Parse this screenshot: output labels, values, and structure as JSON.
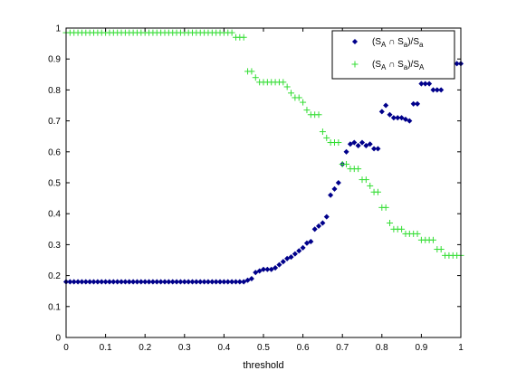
{
  "chart_data": {
    "type": "scatter",
    "title": "",
    "xlabel": "threshold",
    "ylabel": "",
    "xlim": [
      0,
      1
    ],
    "ylim": [
      0,
      1
    ],
    "xticks": [
      "0",
      "0.1",
      "0.2",
      "0.3",
      "0.4",
      "0.5",
      "0.6",
      "0.7",
      "0.8",
      "0.9",
      "1"
    ],
    "yticks": [
      "0",
      "0.1",
      "0.2",
      "0.3",
      "0.4",
      "0.5",
      "0.6",
      "0.7",
      "0.8",
      "0.9",
      "1"
    ],
    "grid": false,
    "legend_position": "top-right",
    "series": [
      {
        "legend_main": "(S",
        "legend_sub1": "A",
        "legend_mid": " ∩ S",
        "legend_sub2": "a",
        "legend_div": ")/S",
        "legend_sub3": "a",
        "marker": "diamond",
        "color": "#00008B",
        "x": [
          0.0,
          0.01,
          0.02,
          0.03,
          0.04,
          0.05,
          0.06,
          0.07,
          0.08,
          0.09,
          0.1,
          0.11,
          0.12,
          0.13,
          0.14,
          0.15,
          0.16,
          0.17,
          0.18,
          0.19,
          0.2,
          0.21,
          0.22,
          0.23,
          0.24,
          0.25,
          0.26,
          0.27,
          0.28,
          0.29,
          0.3,
          0.31,
          0.32,
          0.33,
          0.34,
          0.35,
          0.36,
          0.37,
          0.38,
          0.39,
          0.4,
          0.41,
          0.42,
          0.43,
          0.44,
          0.45,
          0.46,
          0.47,
          0.48,
          0.49,
          0.5,
          0.51,
          0.52,
          0.53,
          0.54,
          0.55,
          0.56,
          0.57,
          0.58,
          0.59,
          0.6,
          0.61,
          0.62,
          0.63,
          0.64,
          0.65,
          0.66,
          0.67,
          0.68,
          0.69,
          0.7,
          0.71,
          0.72,
          0.73,
          0.74,
          0.75,
          0.76,
          0.77,
          0.78,
          0.79,
          0.8,
          0.81,
          0.82,
          0.83,
          0.84,
          0.85,
          0.86,
          0.87,
          0.88,
          0.89,
          0.9,
          0.91,
          0.92,
          0.93,
          0.94,
          0.95,
          0.96,
          0.97,
          0.98,
          0.99,
          1.0
        ],
        "y": [
          0.18,
          0.18,
          0.18,
          0.18,
          0.18,
          0.18,
          0.18,
          0.18,
          0.18,
          0.18,
          0.18,
          0.18,
          0.18,
          0.18,
          0.18,
          0.18,
          0.18,
          0.18,
          0.18,
          0.18,
          0.18,
          0.18,
          0.18,
          0.18,
          0.18,
          0.18,
          0.18,
          0.18,
          0.18,
          0.18,
          0.18,
          0.18,
          0.18,
          0.18,
          0.18,
          0.18,
          0.18,
          0.18,
          0.18,
          0.18,
          0.18,
          0.18,
          0.18,
          0.18,
          0.18,
          0.18,
          0.185,
          0.19,
          0.21,
          0.215,
          0.22,
          0.22,
          0.22,
          0.225,
          0.235,
          0.245,
          0.255,
          0.26,
          0.27,
          0.28,
          0.29,
          0.305,
          0.31,
          0.35,
          0.36,
          0.37,
          0.39,
          0.46,
          0.48,
          0.5,
          0.56,
          0.6,
          0.625,
          0.63,
          0.62,
          0.63,
          0.62,
          0.625,
          0.61,
          0.61,
          0.73,
          0.75,
          0.72,
          0.71,
          0.71,
          0.71,
          0.705,
          0.7,
          0.755,
          0.755,
          0.82,
          0.82,
          0.82,
          0.8,
          0.8,
          0.8,
          0.885,
          0.885,
          0.885,
          0.885,
          0.885
        ]
      },
      {
        "legend_main": "(S",
        "legend_sub1": "A",
        "legend_mid": " ∩ S",
        "legend_sub2": "a",
        "legend_div": ")/S",
        "legend_sub3": "A",
        "marker": "plus",
        "color": "#33DD33",
        "x": [
          0.0,
          0.01,
          0.02,
          0.03,
          0.04,
          0.05,
          0.06,
          0.07,
          0.08,
          0.09,
          0.1,
          0.11,
          0.12,
          0.13,
          0.14,
          0.15,
          0.16,
          0.17,
          0.18,
          0.19,
          0.2,
          0.21,
          0.22,
          0.23,
          0.24,
          0.25,
          0.26,
          0.27,
          0.28,
          0.29,
          0.3,
          0.31,
          0.32,
          0.33,
          0.34,
          0.35,
          0.36,
          0.37,
          0.38,
          0.39,
          0.4,
          0.41,
          0.42,
          0.43,
          0.44,
          0.45,
          0.46,
          0.47,
          0.48,
          0.49,
          0.5,
          0.51,
          0.52,
          0.53,
          0.54,
          0.55,
          0.56,
          0.57,
          0.58,
          0.59,
          0.6,
          0.61,
          0.62,
          0.63,
          0.64,
          0.65,
          0.66,
          0.67,
          0.68,
          0.69,
          0.7,
          0.71,
          0.72,
          0.73,
          0.74,
          0.75,
          0.76,
          0.77,
          0.78,
          0.79,
          0.8,
          0.81,
          0.82,
          0.83,
          0.84,
          0.85,
          0.86,
          0.87,
          0.88,
          0.89,
          0.9,
          0.91,
          0.92,
          0.93,
          0.94,
          0.95,
          0.96,
          0.97,
          0.98,
          0.99,
          1.0
        ],
        "y": [
          0.985,
          0.985,
          0.985,
          0.985,
          0.985,
          0.985,
          0.985,
          0.985,
          0.985,
          0.985,
          0.985,
          0.985,
          0.985,
          0.985,
          0.985,
          0.985,
          0.985,
          0.985,
          0.985,
          0.985,
          0.985,
          0.985,
          0.985,
          0.985,
          0.985,
          0.985,
          0.985,
          0.985,
          0.985,
          0.985,
          0.985,
          0.985,
          0.985,
          0.985,
          0.985,
          0.985,
          0.985,
          0.985,
          0.985,
          0.985,
          0.985,
          0.985,
          0.985,
          0.97,
          0.97,
          0.97,
          0.86,
          0.86,
          0.84,
          0.825,
          0.825,
          0.825,
          0.825,
          0.825,
          0.825,
          0.825,
          0.81,
          0.79,
          0.775,
          0.775,
          0.76,
          0.735,
          0.72,
          0.72,
          0.72,
          0.665,
          0.645,
          0.63,
          0.63,
          0.63,
          0.56,
          0.56,
          0.545,
          0.545,
          0.545,
          0.51,
          0.51,
          0.49,
          0.47,
          0.47,
          0.42,
          0.42,
          0.37,
          0.35,
          0.35,
          0.35,
          0.335,
          0.335,
          0.335,
          0.335,
          0.315,
          0.315,
          0.315,
          0.315,
          0.285,
          0.285,
          0.265,
          0.265,
          0.265,
          0.265,
          0.265
        ]
      }
    ]
  }
}
